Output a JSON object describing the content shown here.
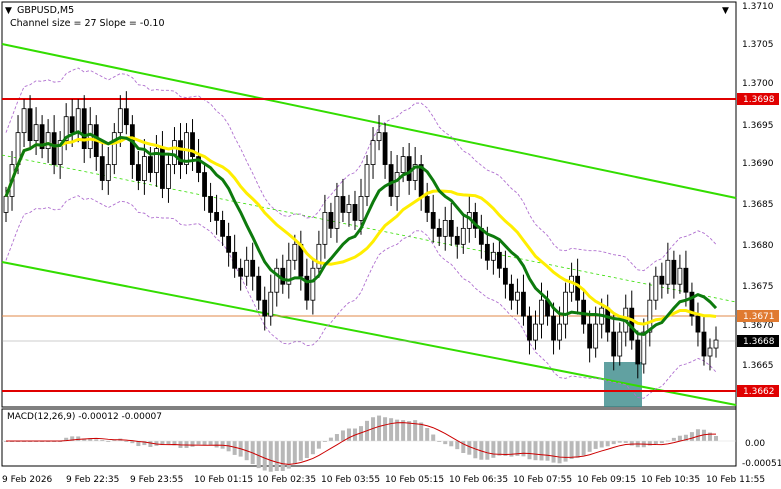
{
  "window": {
    "symbol_title": "GBPUSD,M5",
    "indicator_info": "Channel size = 27 Slope = -0.10"
  },
  "colors": {
    "background": "#ffffff",
    "candle": "#000000",
    "level_line": "#e00000",
    "channel": "#33dd00",
    "ma_fast": "#0d7a0d",
    "ma_slow": "#ffee00",
    "envelope": "#b070d0",
    "macd_hist": "#b8b8b8",
    "macd_signal": "#cc0000",
    "highlight_box": "#3a8a8a",
    "grid_text": "#000000"
  },
  "price_axis": {
    "labels": [
      "1.3710",
      "1.3705",
      "1.3700",
      "1.3695",
      "1.3690",
      "1.3685",
      "1.3680",
      "1.3675",
      "1.3670",
      "1.3665"
    ],
    "marker_labels": {
      "level_high": "1.3698",
      "current_orange": "1.3671",
      "last_price": "1.3668",
      "level_low": "1.3662"
    }
  },
  "macd": {
    "title": "MACD(12,26,9) -0.00012 -0.00007",
    "axis_labels": [
      "0.00",
      "-0.00051"
    ]
  },
  "time_axis": {
    "labels": [
      "9 Feb 2026",
      "9 Feb 22:35",
      "9 Feb 23:55",
      "10 Feb 01:15",
      "10 Feb 02:35",
      "10 Feb 03:55",
      "10 Feb 05:15",
      "10 Feb 06:35",
      "10 Feb 07:55",
      "10 Feb 09:15",
      "10 Feb 10:35",
      "10 Feb 11:55"
    ]
  },
  "chart_data": {
    "type": "candlestick",
    "symbol": "GBPUSD",
    "timeframe": "M5",
    "ylim": [
      1.36605,
      1.37105
    ],
    "candles_close": [
      1.3686,
      1.369,
      1.3694,
      1.3697,
      1.3693,
      1.3695,
      1.3692,
      1.3694,
      1.369,
      1.3693,
      1.3696,
      1.3694,
      1.3697,
      1.3692,
      1.3695,
      1.3691,
      1.3688,
      1.369,
      1.3694,
      1.3697,
      1.3695,
      1.369,
      1.3688,
      1.3691,
      1.3689,
      1.3692,
      1.3687,
      1.369,
      1.3693,
      1.369,
      1.3694,
      1.3691,
      1.3689,
      1.3686,
      1.3684,
      1.3683,
      1.3681,
      1.3679,
      1.3677,
      1.3676,
      1.3678,
      1.3676,
      1.3673,
      1.3671,
      1.3674,
      1.3677,
      1.3675,
      1.3678,
      1.368,
      1.3676,
      1.3673,
      1.3677,
      1.368,
      1.3684,
      1.3682,
      1.3686,
      1.3684,
      1.3685,
      1.3683,
      1.3686,
      1.369,
      1.3693,
      1.3694,
      1.369,
      1.3686,
      1.3689,
      1.3691,
      1.3688,
      1.369,
      1.3686,
      1.3684,
      1.3682,
      1.3681,
      1.3683,
      1.3681,
      1.368,
      1.3682,
      1.3684,
      1.3682,
      1.368,
      1.3678,
      1.3679,
      1.3677,
      1.3675,
      1.3673,
      1.3674,
      1.3671,
      1.3668,
      1.367,
      1.3673,
      1.3671,
      1.3668,
      1.367,
      1.3674,
      1.3676,
      1.3673,
      1.367,
      1.3667,
      1.367,
      1.3672,
      1.3669,
      1.3666,
      1.3669,
      1.3672,
      1.3668,
      1.3665,
      1.3669,
      1.3673,
      1.3676,
      1.3675,
      1.3678,
      1.3675,
      1.3677,
      1.3674,
      1.3671,
      1.3669,
      1.3666,
      1.3667,
      1.3668
    ],
    "levels": {
      "high": 1.3698,
      "current": 1.3671,
      "last": 1.3668,
      "low": 1.3662
    }
  }
}
